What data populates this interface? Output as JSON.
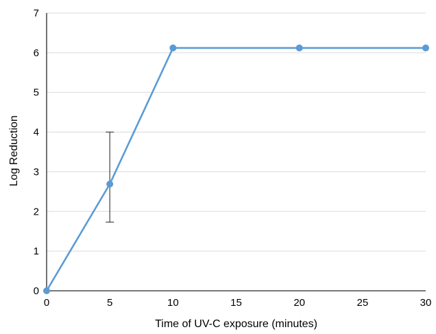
{
  "chart_data": {
    "type": "line",
    "xlabel": "Time of UV-C exposure (minutes)",
    "ylabel": "Log Reduction",
    "xlim": [
      0,
      30
    ],
    "ylim": [
      0,
      7
    ],
    "x_ticks": [
      0,
      5,
      10,
      15,
      20,
      25,
      30
    ],
    "y_ticks": [
      0,
      1,
      2,
      3,
      4,
      5,
      6,
      7
    ],
    "grid": "horizontal",
    "legend": "none",
    "series": [
      {
        "x": [
          0,
          5,
          10,
          20,
          30
        ],
        "values": [
          0,
          2.69,
          6.12,
          6.12,
          6.12
        ],
        "color": "#5b9bd5",
        "error_bars": [
          {
            "x": 5,
            "low": 1.73,
            "high": 4.0
          }
        ]
      }
    ],
    "gridline_color": "#d9d9d9",
    "axis_color": "#262626",
    "errorbar_color": "#404040"
  }
}
